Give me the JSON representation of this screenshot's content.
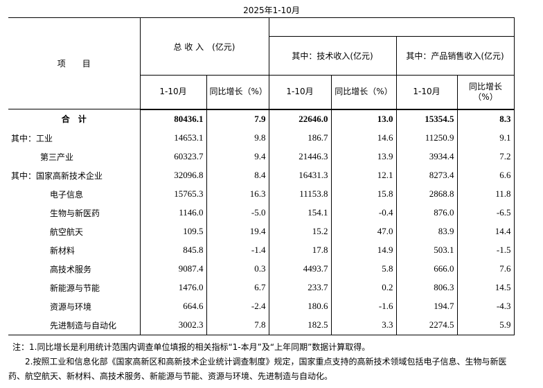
{
  "header": {
    "title": "2025年1-10月"
  },
  "table": {
    "item_header": "项　　目",
    "groups": [
      "总 收 入　(亿元)",
      "其中：技术收入(亿元)",
      "其中：产品销售收入(亿元)"
    ],
    "subheaders": [
      "1-10月",
      "同比增长（%）",
      "1-10月",
      "同比增长（%）",
      "1-10月",
      "同比增长（%）"
    ],
    "rows": [
      [
        "合　计",
        "80436.1",
        "7.9",
        "22646.0",
        "13.0",
        "15354.5",
        "8.3"
      ],
      [
        "其中：工业",
        "14653.1",
        "9.8",
        "186.7",
        "14.6",
        "11250.9",
        "9.1"
      ],
      [
        "第三产业",
        "60323.7",
        "9.4",
        "21446.3",
        "13.9",
        "3934.4",
        "7.2"
      ],
      [
        "其中：国家高新技术企业",
        "32096.8",
        "8.4",
        "16431.3",
        "12.1",
        "8273.4",
        "6.6"
      ],
      [
        "电子信息",
        "15765.3",
        "16.3",
        "11153.8",
        "15.8",
        "2868.8",
        "11.8"
      ],
      [
        "生物与新医药",
        "1146.0",
        "-5.0",
        "154.1",
        "-0.4",
        "876.0",
        "-6.5"
      ],
      [
        "航空航天",
        "109.5",
        "19.4",
        "15.2",
        "47.0",
        "83.9",
        "14.4"
      ],
      [
        "新材料",
        "845.8",
        "-1.4",
        "17.8",
        "14.9",
        "503.1",
        "-1.5"
      ],
      [
        "高技术服务",
        "9087.4",
        "0.3",
        "4493.7",
        "5.8",
        "666.0",
        "7.6"
      ],
      [
        "新能源与节能",
        "1476.0",
        "6.7",
        "233.7",
        "0.2",
        "806.3",
        "14.5"
      ],
      [
        "资源与环境",
        "664.6",
        "-2.4",
        "180.6",
        "-1.6",
        "194.7",
        "-4.3"
      ],
      [
        "先进制造与自动化",
        "3002.3",
        "7.8",
        "182.5",
        "3.3",
        "2274.5",
        "5.9"
      ]
    ]
  },
  "notes": {
    "label": "注：",
    "items": [
      "1.同比增长是利用统计范围内调查单位填报的相关指标“1-本月”及“上年同期”数据计算取得。",
      "2.按照工业和信息化部《国家高新区和高新技术企业统计调查制度》规定，国家重点支持的高新技术领域包括电子信息、生物与新医药、航空航天、新材料、高技术服务、新能源与节能、资源与环境、先进制造与自动化。"
    ]
  }
}
